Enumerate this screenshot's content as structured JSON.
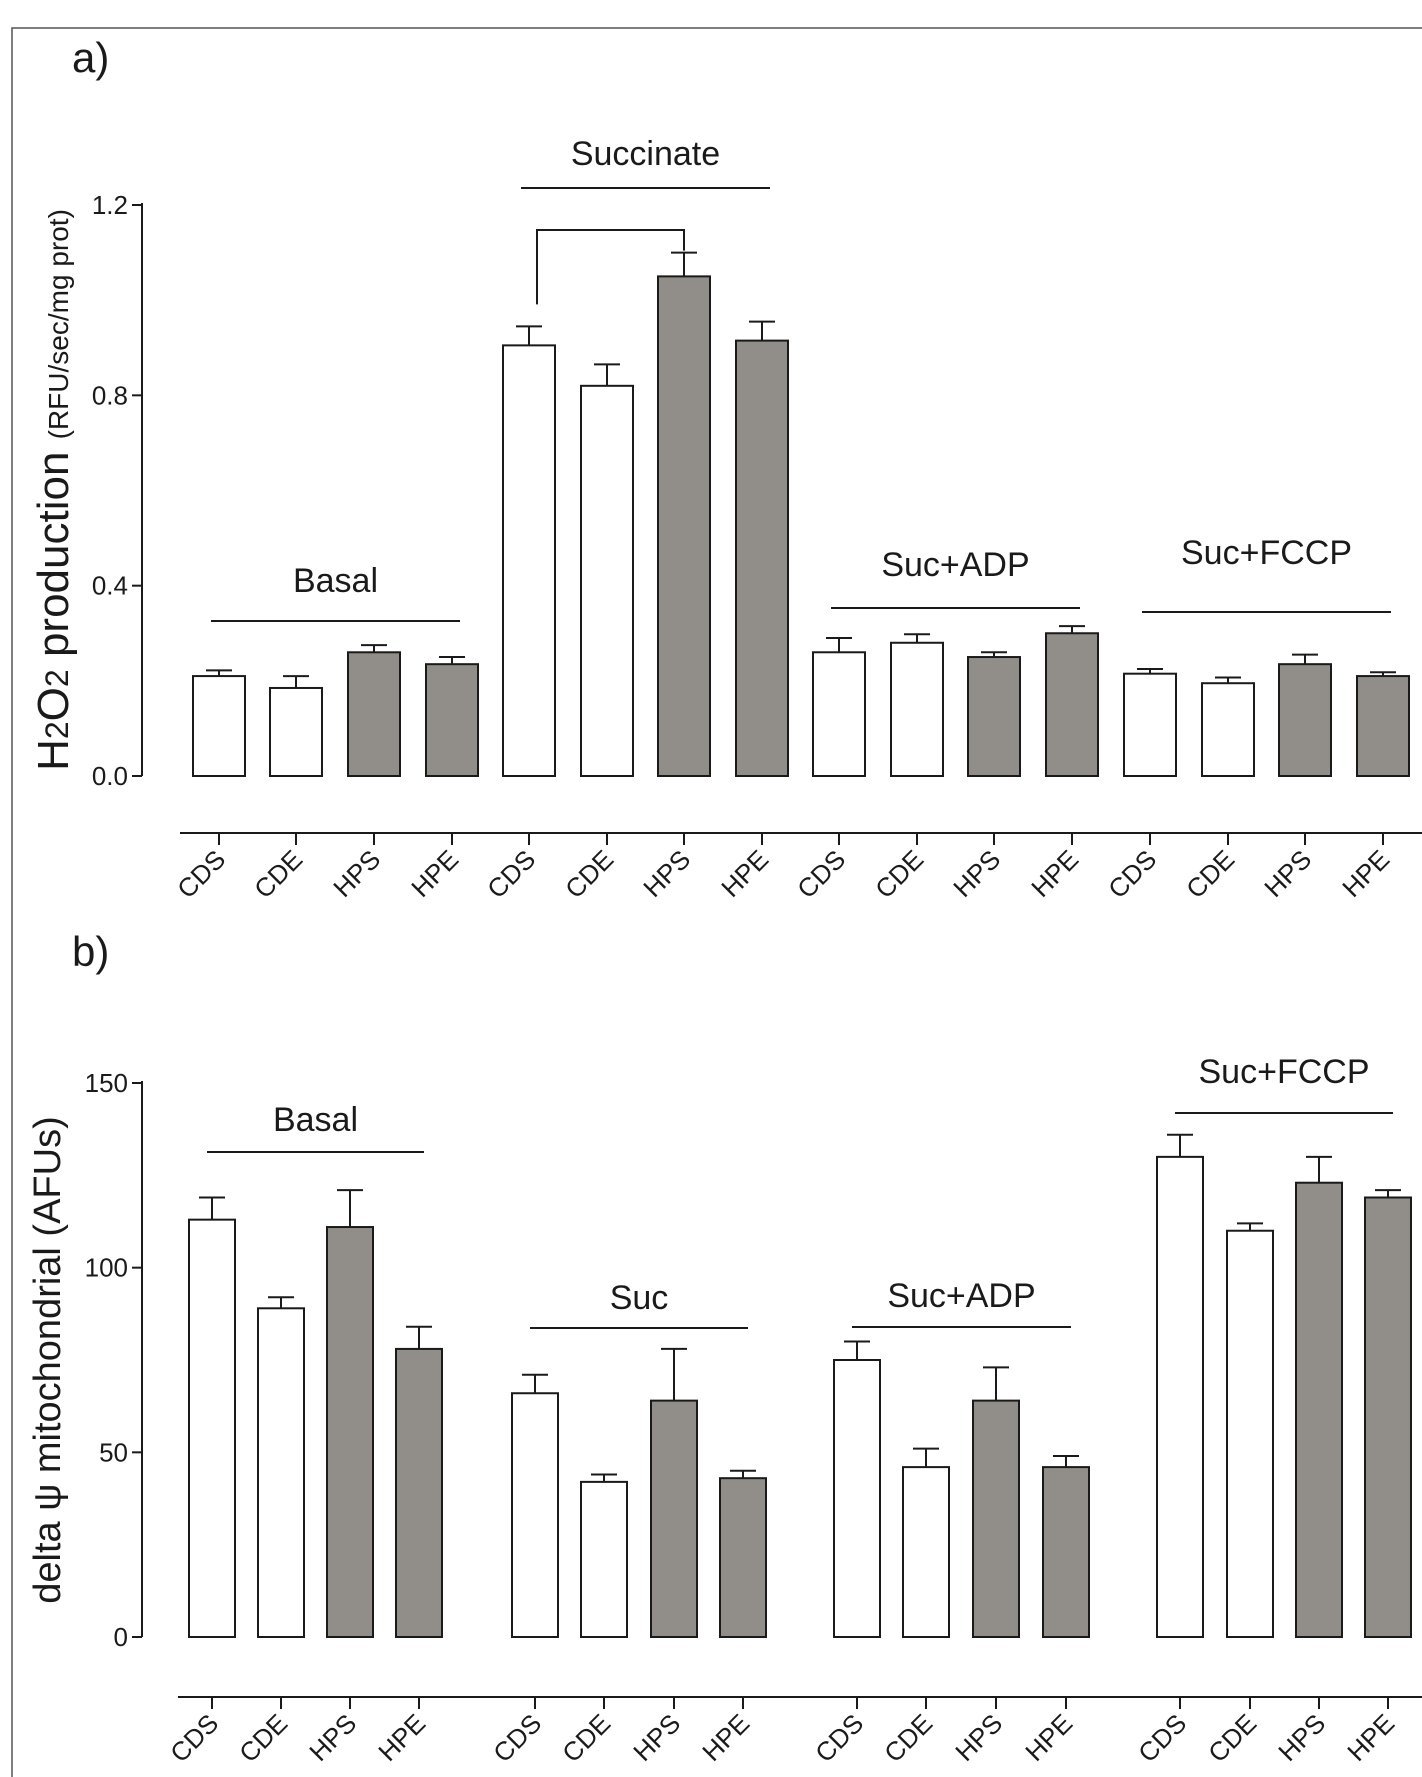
{
  "colors": {
    "open_bar": "#ffffff",
    "filled_bar": "#918e89",
    "stroke": "#1a1a1a",
    "frame": "#555555"
  },
  "chart_data": [
    {
      "type": "bar",
      "panel_label": "a)",
      "ylabel_main": "H2O2 production",
      "ylabel_unit": "(RFU/sec/mg prot)",
      "ylim": [
        0,
        1.2
      ],
      "yticks": [
        0,
        0.4,
        0.8,
        1.2
      ],
      "ytick_labels": [
        "0.0",
        "0.4",
        "0.8",
        "1.2"
      ],
      "grid": false,
      "categories": [
        "CDS",
        "CDE",
        "HPS",
        "HPE",
        "CDS",
        "CDE",
        "HPS",
        "HPE",
        "CDS",
        "CDE",
        "HPS",
        "HPE",
        "CDS",
        "CDE",
        "HPS",
        "HPE"
      ],
      "values": [
        0.21,
        0.185,
        0.26,
        0.235,
        0.905,
        0.82,
        1.05,
        0.915,
        0.26,
        0.28,
        0.25,
        0.3,
        0.215,
        0.195,
        0.235,
        0.21
      ],
      "errors": [
        0.012,
        0.025,
        0.015,
        0.015,
        0.04,
        0.045,
        0.05,
        0.04,
        0.03,
        0.018,
        0.01,
        0.015,
        0.01,
        0.012,
        0.02,
        0.008
      ],
      "filled": [
        false,
        false,
        true,
        true,
        false,
        false,
        true,
        true,
        false,
        false,
        true,
        true,
        false,
        false,
        true,
        true
      ],
      "groups": [
        {
          "label": "Basal",
          "start": 0,
          "end": 3
        },
        {
          "label": "Succinate",
          "start": 4,
          "end": 7
        },
        {
          "label": "Suc+ADP",
          "start": 8,
          "end": 11
        },
        {
          "label": "Suc+FCCP",
          "start": 12,
          "end": 15
        }
      ],
      "significance_bracket": {
        "from": 4,
        "to": 6
      }
    },
    {
      "type": "bar",
      "panel_label": "b)",
      "ylabel": "delta ψ mitochondrial (AFUs)",
      "ylim": [
        0,
        150
      ],
      "yticks": [
        0,
        50,
        100,
        150
      ],
      "ytick_labels": [
        "0",
        "50",
        "100",
        "150"
      ],
      "grid": false,
      "categories": [
        "CDS",
        "CDE",
        "HPS",
        "HPE",
        "CDS",
        "CDE",
        "HPS",
        "HPE",
        "CDS",
        "CDE",
        "HPS",
        "HPE",
        "CDS",
        "CDE",
        "HPS",
        "HPE"
      ],
      "values": [
        113,
        89,
        111,
        78,
        66,
        42,
        64,
        43,
        75,
        46,
        64,
        46,
        130,
        110,
        123,
        119
      ],
      "errors": [
        6,
        3,
        10,
        6,
        5,
        2,
        14,
        2,
        5,
        5,
        9,
        3,
        6,
        2,
        7,
        2
      ],
      "filled": [
        false,
        false,
        true,
        true,
        false,
        false,
        true,
        true,
        false,
        false,
        true,
        true,
        false,
        false,
        true,
        true
      ],
      "groups": [
        {
          "label": "Basal",
          "start": 0,
          "end": 3
        },
        {
          "label": "Suc",
          "start": 4,
          "end": 7
        },
        {
          "label": "Suc+ADP",
          "start": 8,
          "end": 11
        },
        {
          "label": "Suc+FCCP",
          "start": 12,
          "end": 15
        }
      ]
    }
  ]
}
